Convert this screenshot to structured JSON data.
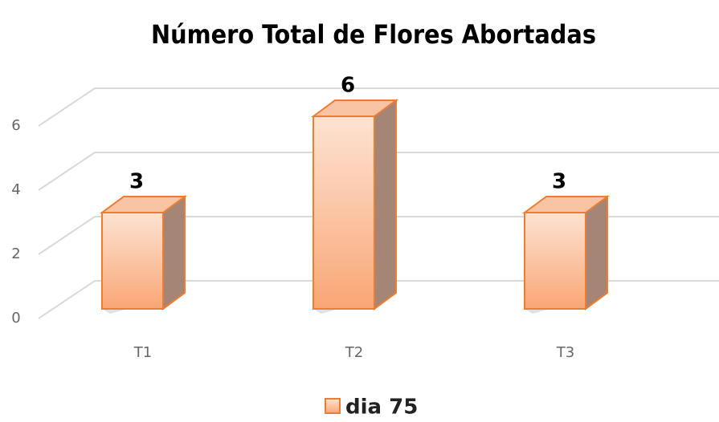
{
  "chart_data": {
    "type": "bar3d",
    "title": "Número Total de Flores Abortadas",
    "categories": [
      "T1",
      "T2",
      "T3"
    ],
    "series": [
      {
        "name": "dia 75",
        "color": "#ed7d31",
        "values": [
          3,
          6,
          3
        ]
      }
    ],
    "ylim": [
      0,
      6
    ],
    "yticks": [
      0,
      2,
      4,
      6
    ],
    "grid": true,
    "legend": "bottom"
  }
}
